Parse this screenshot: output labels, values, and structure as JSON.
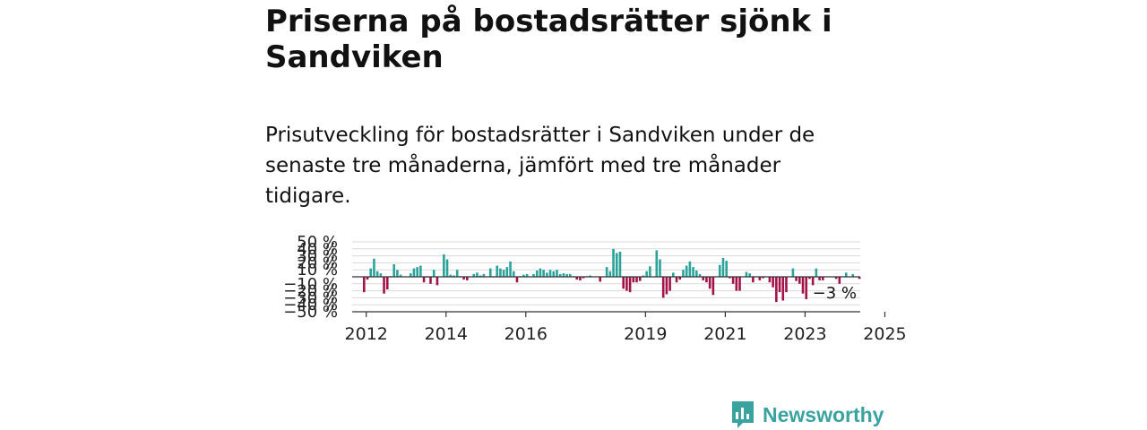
{
  "title": "Priserna på bostadsrätter sjönk i Sandviken",
  "subtitle": "Prisutveckling för bostadsrätter i Sandviken under de senaste tre månaderna, jämfört med tre månader tidigare.",
  "brand": {
    "name": "Newsworthy",
    "color": "#3aa3a0"
  },
  "colors": {
    "positive": "#2ba39b",
    "negative": "#a3134a",
    "grid": "#d9d9d9",
    "axis": "#333333"
  },
  "chart_data": {
    "type": "bar",
    "ylim": [
      -50,
      50
    ],
    "y_ticks": [
      {
        "value": 50,
        "label": "50 %"
      },
      {
        "value": 40,
        "label": "40 %"
      },
      {
        "value": 30,
        "label": "30 %"
      },
      {
        "value": 20,
        "label": "20 %"
      },
      {
        "value": 10,
        "label": "10 %"
      },
      {
        "value": -10,
        "label": "−10 %"
      },
      {
        "value": -20,
        "label": "−20 %"
      },
      {
        "value": -30,
        "label": "−30 %"
      },
      {
        "value": -40,
        "label": "−40 %"
      },
      {
        "value": -50,
        "label": "−50 %"
      }
    ],
    "x_ticks": [
      {
        "year": 2012,
        "label": "2012"
      },
      {
        "year": 2014,
        "label": "2014"
      },
      {
        "year": 2016,
        "label": "2016"
      },
      {
        "year": 2019,
        "label": "2019"
      },
      {
        "year": 2021,
        "label": "2021"
      },
      {
        "year": 2023,
        "label": "2023"
      },
      {
        "year": 2025,
        "label": "2025"
      }
    ],
    "start": "2011-12",
    "values": [
      -22,
      -4,
      12,
      26,
      8,
      5,
      -24,
      -18,
      1,
      18,
      10,
      3,
      0,
      0,
      5,
      12,
      14,
      16,
      -8,
      -1,
      -10,
      10,
      -12,
      0,
      32,
      25,
      3,
      2,
      10,
      1,
      -4,
      -5,
      0,
      4,
      6,
      2,
      4,
      0,
      12,
      1,
      16,
      12,
      10,
      14,
      22,
      8,
      -8,
      1,
      3,
      4,
      0,
      4,
      9,
      12,
      10,
      6,
      10,
      8,
      10,
      4,
      5,
      4,
      4,
      1,
      -4,
      -5,
      -2,
      1,
      2,
      0,
      0,
      -7,
      0,
      14,
      8,
      40,
      34,
      36,
      -17,
      -20,
      -22,
      -8,
      -8,
      -6,
      2,
      8,
      15,
      0,
      38,
      25,
      -30,
      -25,
      -20,
      6,
      -8,
      -4,
      10,
      16,
      22,
      14,
      9,
      4,
      -5,
      -8,
      -17,
      -26,
      0,
      17,
      27,
      23,
      -2,
      -10,
      -20,
      -20,
      0,
      7,
      5,
      -8,
      0,
      -5,
      -2,
      0,
      -8,
      -15,
      -36,
      -22,
      -34,
      -22,
      0,
      12,
      -6,
      -10,
      -24,
      -32,
      -3,
      -12,
      12,
      -5,
      -5,
      0,
      0,
      0,
      -3,
      -10,
      0,
      6,
      0,
      4,
      0,
      -3
    ],
    "annotations": [
      {
        "label": "−3 %",
        "value": -3,
        "date": "2025-03"
      }
    ]
  }
}
